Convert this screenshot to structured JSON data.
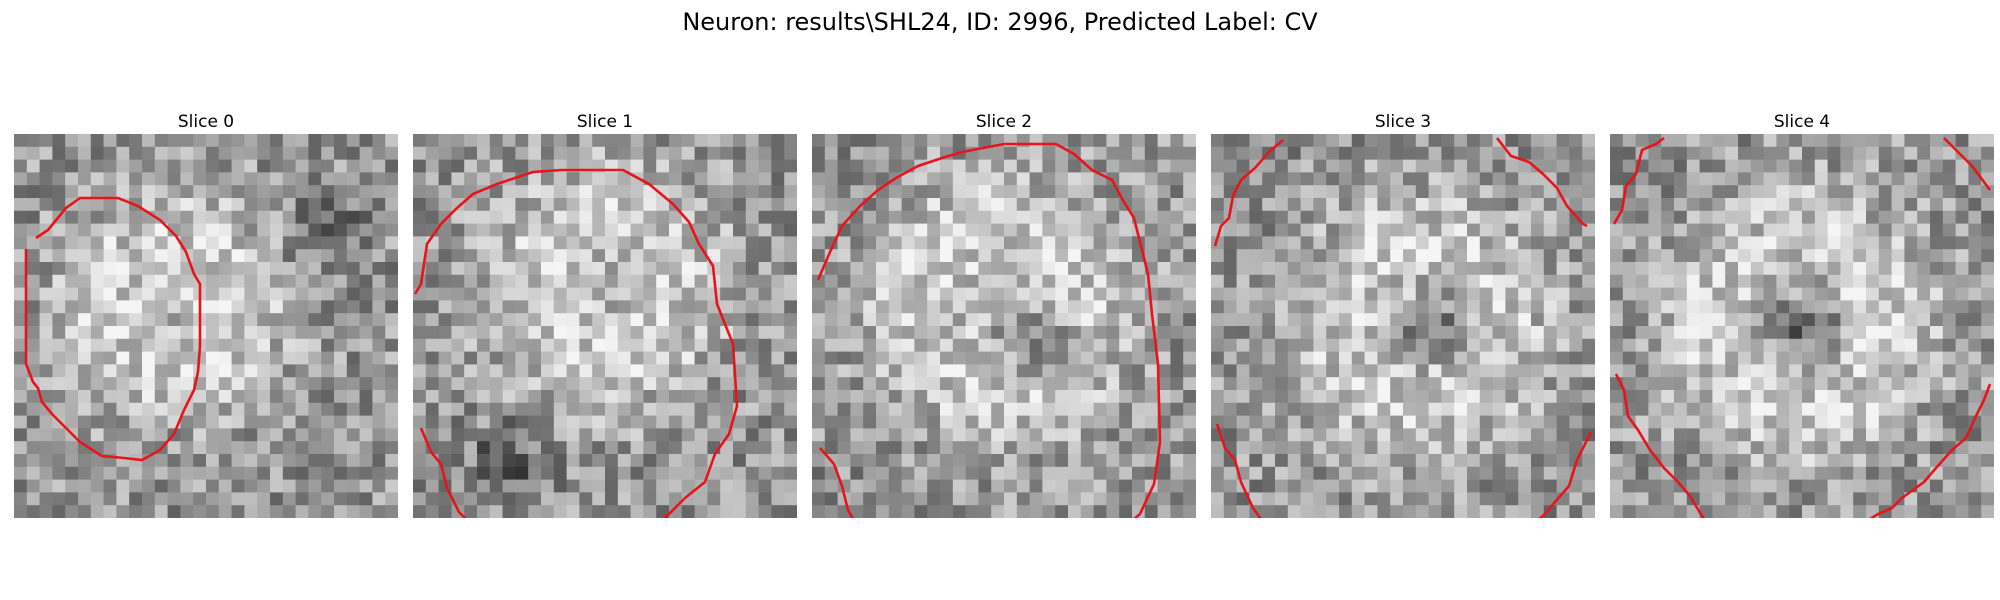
{
  "figure": {
    "title": "Neuron: results\\SHL24, ID: 2996, Predicted Label: CV"
  },
  "slices": [
    {
      "title": "Slice 0",
      "seed": 11,
      "contour_color": "#e8141b"
    },
    {
      "title": "Slice 1",
      "seed": 23,
      "contour_color": "#e8141b"
    },
    {
      "title": "Slice 2",
      "seed": 37,
      "contour_color": "#e8141b"
    },
    {
      "title": "Slice 3",
      "seed": 53,
      "contour_color": "#e8141b"
    },
    {
      "title": "Slice 4",
      "seed": 71,
      "contour_color": "#e8141b"
    }
  ]
}
